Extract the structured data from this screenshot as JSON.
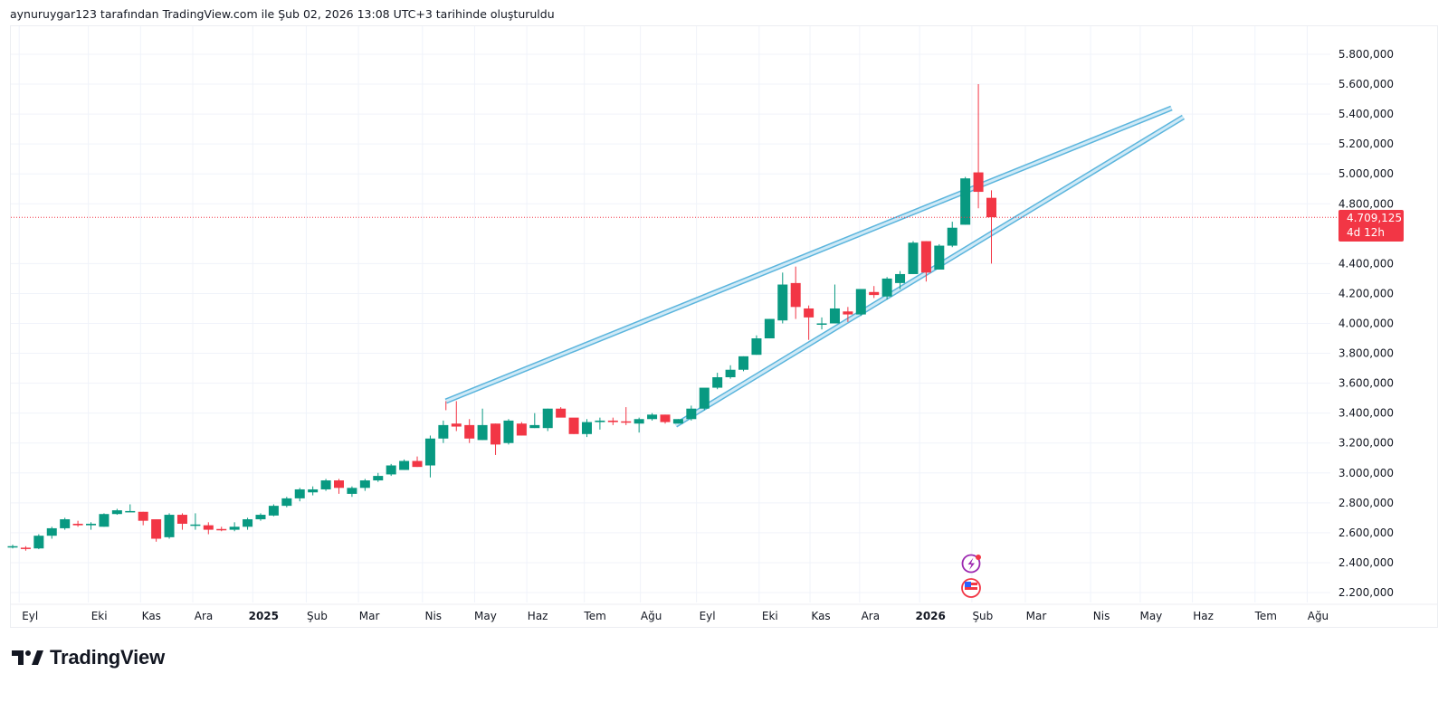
{
  "caption": "aynuruygar123 tarafından TradingView.com ile Şub 02, 2026 13:08 UTC+3 tarihinde oluşturuldu",
  "logo_text": "TradingView",
  "colors": {
    "up": "#089981",
    "down": "#f23645",
    "trendline": "#5bb5dd",
    "trendline_fill": "#cfe9f6",
    "grid": "#f0f3fa",
    "text": "#131722",
    "price_line": "#f23645"
  },
  "price_badge": {
    "price": "4.709,125",
    "countdown": "4d 12h"
  },
  "icons": [
    "lightning-event-icon",
    "us-flag-economic-event-icon"
  ],
  "chart_data": {
    "type": "candlestick",
    "interval": "weekly",
    "ylim": [
      2100000,
      5900000
    ],
    "y_ticks": [
      {
        "value": 5800000,
        "label": "5.800,000"
      },
      {
        "value": 5600000,
        "label": "5.600,000"
      },
      {
        "value": 5400000,
        "label": "5.400,000"
      },
      {
        "value": 5200000,
        "label": "5.200,000"
      },
      {
        "value": 5000000,
        "label": "5.000,000"
      },
      {
        "value": 4800000,
        "label": "4.800,000"
      },
      {
        "value": 4400000,
        "label": "4.400,000"
      },
      {
        "value": 4200000,
        "label": "4.200,000"
      },
      {
        "value": 4000000,
        "label": "4.000,000"
      },
      {
        "value": 3800000,
        "label": "3.800,000"
      },
      {
        "value": 3600000,
        "label": "3.600,000"
      },
      {
        "value": 3400000,
        "label": "3.400,000"
      },
      {
        "value": 3200000,
        "label": "3.200,000"
      },
      {
        "value": 3000000,
        "label": "3.000,000"
      },
      {
        "value": 2800000,
        "label": "2.800,000"
      },
      {
        "value": 2600000,
        "label": "2.600,000"
      },
      {
        "value": 2400000,
        "label": "2.400,000"
      },
      {
        "value": 2200000,
        "label": "2.200,000"
      }
    ],
    "x_ticks": [
      {
        "bar": 0.5,
        "label": "Eyl",
        "bold": false
      },
      {
        "bar": 5.8,
        "label": "Eki",
        "bold": false
      },
      {
        "bar": 9.8,
        "label": "Kas",
        "bold": false
      },
      {
        "bar": 13.8,
        "label": "Ara",
        "bold": false
      },
      {
        "bar": 18.4,
        "label": "2025",
        "bold": true
      },
      {
        "bar": 22.5,
        "label": "Şub",
        "bold": false
      },
      {
        "bar": 26.5,
        "label": "Mar",
        "bold": false
      },
      {
        "bar": 31.4,
        "label": "Nis",
        "bold": false
      },
      {
        "bar": 35.4,
        "label": "May",
        "bold": false
      },
      {
        "bar": 39.4,
        "label": "Haz",
        "bold": false
      },
      {
        "bar": 43.8,
        "label": "Tem",
        "bold": false
      },
      {
        "bar": 48.1,
        "label": "Ağu",
        "bold": false
      },
      {
        "bar": 52.4,
        "label": "Eyl",
        "bold": false
      },
      {
        "bar": 57.2,
        "label": "Eki",
        "bold": false
      },
      {
        "bar": 61.1,
        "label": "Kas",
        "bold": false
      },
      {
        "bar": 64.9,
        "label": "Ara",
        "bold": false
      },
      {
        "bar": 69.5,
        "label": "2026",
        "bold": true
      },
      {
        "bar": 73.5,
        "label": "Şub",
        "bold": false
      },
      {
        "bar": 77.6,
        "label": "Mar",
        "bold": false
      },
      {
        "bar": 82.6,
        "label": "Nis",
        "bold": false
      },
      {
        "bar": 86.4,
        "label": "May",
        "bold": false
      },
      {
        "bar": 90.4,
        "label": "Haz",
        "bold": false
      },
      {
        "bar": 95.2,
        "label": "Tem",
        "bold": false
      },
      {
        "bar": 99.2,
        "label": "Ağu",
        "bold": false
      }
    ],
    "candles": [
      [
        2505000,
        2520000,
        2495000,
        2510000
      ],
      [
        2500000,
        2510000,
        2480000,
        2495000
      ],
      [
        2495000,
        2590000,
        2490000,
        2580000
      ],
      [
        2580000,
        2640000,
        2560000,
        2630000
      ],
      [
        2630000,
        2700000,
        2620000,
        2690000
      ],
      [
        2660000,
        2680000,
        2640000,
        2650000
      ],
      [
        2650000,
        2670000,
        2620000,
        2660000
      ],
      [
        2640000,
        2730000,
        2640000,
        2725000
      ],
      [
        2725000,
        2760000,
        2720000,
        2750000
      ],
      [
        2745000,
        2790000,
        2740000,
        2745000
      ],
      [
        2740000,
        2740000,
        2650000,
        2680000
      ],
      [
        2690000,
        2690000,
        2540000,
        2560000
      ],
      [
        2570000,
        2730000,
        2560000,
        2720000
      ],
      [
        2720000,
        2730000,
        2620000,
        2660000
      ],
      [
        2650000,
        2730000,
        2620000,
        2655000
      ],
      [
        2650000,
        2670000,
        2590000,
        2620000
      ],
      [
        2625000,
        2640000,
        2610000,
        2620000
      ],
      [
        2620000,
        2670000,
        2610000,
        2640000
      ],
      [
        2640000,
        2700000,
        2620000,
        2690000
      ],
      [
        2690000,
        2730000,
        2680000,
        2720000
      ],
      [
        2715000,
        2790000,
        2710000,
        2780000
      ],
      [
        2780000,
        2840000,
        2770000,
        2830000
      ],
      [
        2830000,
        2900000,
        2810000,
        2890000
      ],
      [
        2870000,
        2910000,
        2850000,
        2890000
      ],
      [
        2890000,
        2960000,
        2880000,
        2950000
      ],
      [
        2950000,
        2960000,
        2860000,
        2900000
      ],
      [
        2860000,
        2910000,
        2840000,
        2900000
      ],
      [
        2900000,
        2960000,
        2880000,
        2950000
      ],
      [
        2950000,
        3000000,
        2940000,
        2980000
      ],
      [
        2990000,
        3060000,
        2980000,
        3050000
      ],
      [
        3020000,
        3090000,
        3020000,
        3080000
      ],
      [
        3080000,
        3110000,
        3040000,
        3040000
      ],
      [
        3050000,
        3250000,
        2970000,
        3230000
      ],
      [
        3230000,
        3350000,
        3200000,
        3320000
      ],
      [
        3330000,
        3480000,
        3280000,
        3310000
      ],
      [
        3320000,
        3360000,
        3200000,
        3230000
      ],
      [
        3220000,
        3430000,
        3220000,
        3320000
      ],
      [
        3330000,
        3330000,
        3120000,
        3190000
      ],
      [
        3200000,
        3360000,
        3190000,
        3350000
      ],
      [
        3330000,
        3340000,
        3250000,
        3250000
      ],
      [
        3300000,
        3400000,
        3300000,
        3320000
      ],
      [
        3300000,
        3430000,
        3280000,
        3430000
      ],
      [
        3430000,
        3440000,
        3380000,
        3370000
      ],
      [
        3370000,
        3340000,
        3260000,
        3260000
      ],
      [
        3260000,
        3360000,
        3240000,
        3340000
      ],
      [
        3340000,
        3370000,
        3290000,
        3350000
      ],
      [
        3350000,
        3370000,
        3320000,
        3340000
      ],
      [
        3345000,
        3440000,
        3320000,
        3340000
      ],
      [
        3330000,
        3370000,
        3270000,
        3360000
      ],
      [
        3360000,
        3400000,
        3350000,
        3390000
      ],
      [
        3390000,
        3390000,
        3330000,
        3340000
      ],
      [
        3330000,
        3360000,
        3330000,
        3360000
      ],
      [
        3360000,
        3450000,
        3350000,
        3430000
      ],
      [
        3430000,
        3560000,
        3420000,
        3570000
      ],
      [
        3570000,
        3670000,
        3560000,
        3640000
      ],
      [
        3640000,
        3720000,
        3630000,
        3690000
      ],
      [
        3690000,
        3780000,
        3680000,
        3780000
      ],
      [
        3790000,
        3920000,
        3790000,
        3900000
      ],
      [
        3900000,
        4030000,
        3900000,
        4030000
      ],
      [
        4020000,
        4340000,
        4000000,
        4260000
      ],
      [
        4270000,
        4380000,
        4030000,
        4110000
      ],
      [
        4100000,
        4120000,
        3890000,
        4040000
      ],
      [
        4000000,
        4040000,
        3960000,
        4000000
      ],
      [
        4000000,
        4260000,
        4000000,
        4100000
      ],
      [
        4080000,
        4110000,
        4010000,
        4060000
      ],
      [
        4060000,
        4220000,
        4050000,
        4230000
      ],
      [
        4210000,
        4250000,
        4170000,
        4190000
      ],
      [
        4180000,
        4310000,
        4160000,
        4300000
      ],
      [
        4270000,
        4350000,
        4230000,
        4330000
      ],
      [
        4330000,
        4550000,
        4330000,
        4540000
      ],
      [
        4550000,
        4550000,
        4280000,
        4340000
      ],
      [
        4360000,
        4530000,
        4360000,
        4520000
      ],
      [
        4520000,
        4680000,
        4510000,
        4640000
      ],
      [
        4660000,
        4980000,
        4660000,
        4970000
      ],
      [
        5010000,
        5600000,
        4770000,
        4880000
      ],
      [
        4840000,
        4890000,
        4400000,
        4710000
      ]
    ],
    "trendlines": [
      {
        "from": [
          33.2,
          3480000
        ],
        "to": [
          88.8,
          5440000
        ],
        "label": "upper"
      },
      {
        "from": [
          50.8,
          3320000
        ],
        "to": [
          89.7,
          5380000
        ],
        "label": "lower"
      }
    ],
    "last_price": 4709125
  }
}
